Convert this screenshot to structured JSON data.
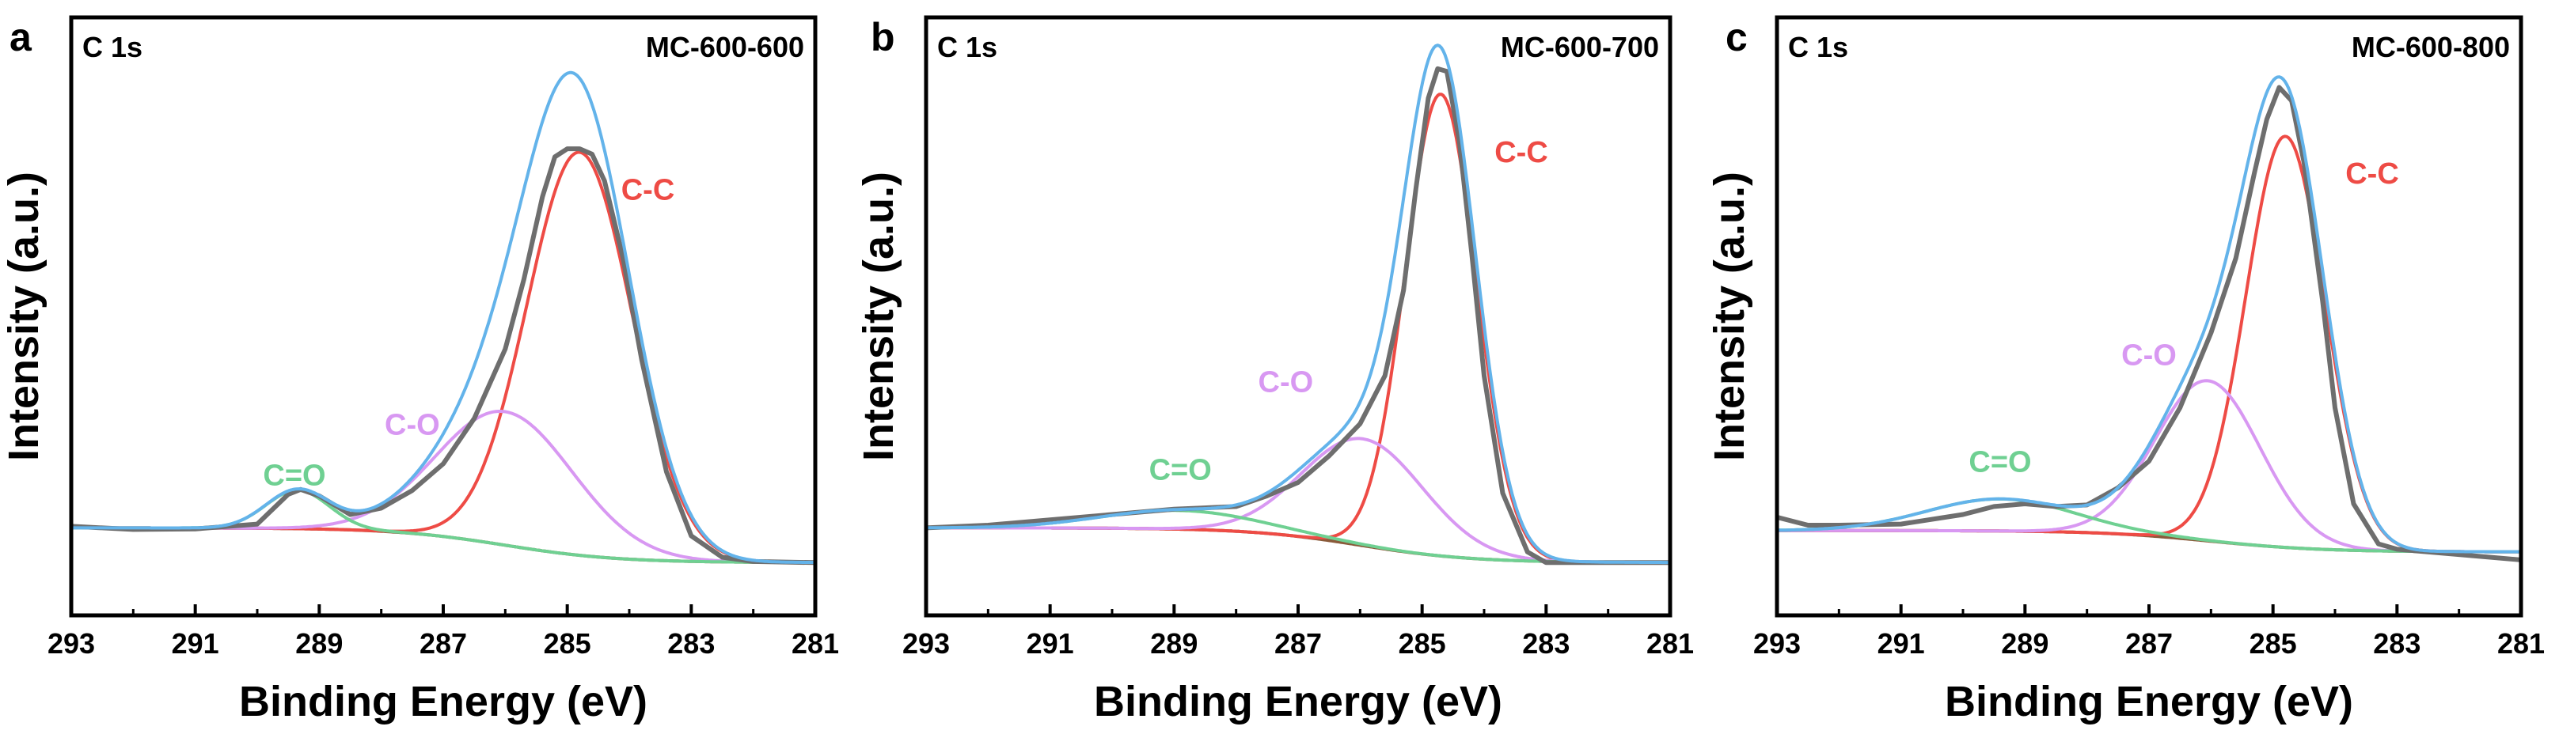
{
  "figure": {
    "colors": {
      "raw": "#6e6e6e",
      "envelope": "#63b3ea",
      "cc": "#ee4b45",
      "co": "#d898f2",
      "c_o_double": "#6fd092",
      "background": "#8a5a3a",
      "frame": "#000000"
    }
  },
  "chart_data": [
    {
      "type": "line",
      "panel_letter": "a",
      "core_level": "C 1s",
      "sample": "MC-600-600",
      "xlabel": "Binding Energy (eV)",
      "ylabel": "Intensity (a.u.)",
      "xlim": [
        293,
        281
      ],
      "x_reversed": true,
      "ylim": [
        0,
        1
      ],
      "x_ticks": [
        "293",
        "291",
        "289",
        "287",
        "285",
        "283",
        "281"
      ],
      "y_ticks_shown": false,
      "background": {
        "high_be": 0.115,
        "low_be": 0.05
      },
      "components": [
        {
          "name": "C-C",
          "center": 284.8,
          "height": 0.755,
          "fwhm": 2.0,
          "label_at": [
            283.7,
            0.73
          ]
        },
        {
          "name": "C-O",
          "center": 286.0,
          "height": 0.25,
          "fwhm": 2.6,
          "label_at": [
            287.5,
            0.29
          ]
        },
        {
          "name": "C=O",
          "center": 289.35,
          "height": 0.072,
          "fwhm": 1.2,
          "label_at": [
            289.4,
            0.195
          ]
        }
      ],
      "raw_spectrum": [
        [
          293.0,
          0.118
        ],
        [
          292.0,
          0.112
        ],
        [
          291.0,
          0.113
        ],
        [
          290.0,
          0.122
        ],
        [
          289.5,
          0.178
        ],
        [
          289.3,
          0.187
        ],
        [
          289.0,
          0.175
        ],
        [
          288.5,
          0.14
        ],
        [
          288.0,
          0.152
        ],
        [
          287.5,
          0.185
        ],
        [
          287.0,
          0.235
        ],
        [
          286.5,
          0.32
        ],
        [
          286.0,
          0.45
        ],
        [
          285.7,
          0.58
        ],
        [
          285.4,
          0.735
        ],
        [
          285.2,
          0.81
        ],
        [
          285.0,
          0.825
        ],
        [
          284.8,
          0.825
        ],
        [
          284.6,
          0.815
        ],
        [
          284.4,
          0.765
        ],
        [
          284.1,
          0.62
        ],
        [
          283.8,
          0.43
        ],
        [
          283.4,
          0.22
        ],
        [
          283.0,
          0.1
        ],
        [
          282.5,
          0.06
        ],
        [
          282.0,
          0.052
        ],
        [
          281.0,
          0.05
        ]
      ]
    },
    {
      "type": "line",
      "panel_letter": "b",
      "core_level": "C 1s",
      "sample": "MC-600-700",
      "xlabel": "Binding Energy (eV)",
      "ylabel": "Intensity (a.u.)",
      "xlim": [
        293,
        281
      ],
      "x_reversed": true,
      "ylim": [
        0,
        1
      ],
      "x_ticks": [
        "293",
        "291",
        "289",
        "287",
        "285",
        "283",
        "281"
      ],
      "y_ticks_shown": false,
      "background": {
        "high_be": 0.115,
        "low_be": 0.05
      },
      "components": [
        {
          "name": "C-C",
          "center": 284.7,
          "height": 0.865,
          "fwhm": 1.35,
          "label_at": [
            283.4,
            0.8
          ]
        },
        {
          "name": "C-O",
          "center": 285.95,
          "height": 0.2,
          "fwhm": 2.3,
          "label_at": [
            287.2,
            0.37
          ]
        },
        {
          "name": "C=O",
          "center": 288.9,
          "height": 0.035,
          "fwhm": 3.0,
          "label_at": [
            288.9,
            0.205
          ]
        }
      ],
      "raw_spectrum": [
        [
          293.0,
          0.115
        ],
        [
          292.0,
          0.12
        ],
        [
          291.0,
          0.13
        ],
        [
          290.0,
          0.14
        ],
        [
          289.0,
          0.15
        ],
        [
          288.0,
          0.155
        ],
        [
          287.5,
          0.175
        ],
        [
          287.0,
          0.2
        ],
        [
          286.5,
          0.25
        ],
        [
          286.0,
          0.31
        ],
        [
          285.6,
          0.4
        ],
        [
          285.3,
          0.56
        ],
        [
          285.1,
          0.75
        ],
        [
          284.9,
          0.92
        ],
        [
          284.75,
          0.975
        ],
        [
          284.6,
          0.97
        ],
        [
          284.4,
          0.84
        ],
        [
          284.2,
          0.63
        ],
        [
          284.0,
          0.4
        ],
        [
          283.7,
          0.18
        ],
        [
          283.3,
          0.07
        ],
        [
          283.0,
          0.05
        ],
        [
          282.0,
          0.05
        ],
        [
          281.0,
          0.05
        ]
      ]
    },
    {
      "type": "line",
      "panel_letter": "c",
      "core_level": "C 1s",
      "sample": "MC-600-800",
      "xlabel": "Binding Energy (eV)",
      "ylabel": "Intensity (a.u.)",
      "xlim": [
        293,
        281
      ],
      "x_reversed": true,
      "ylim": [
        0,
        1
      ],
      "x_ticks": [
        "293",
        "291",
        "289",
        "287",
        "285",
        "283",
        "281"
      ],
      "y_ticks_shown": false,
      "background": {
        "high_be": 0.11,
        "low_be": 0.07
      },
      "components": [
        {
          "name": "C-C",
          "center": 284.8,
          "height": 0.77,
          "fwhm": 1.5,
          "label_at": [
            283.4,
            0.76
          ]
        },
        {
          "name": "C-O",
          "center": 286.05,
          "height": 0.3,
          "fwhm": 2.0,
          "label_at": [
            287.0,
            0.42
          ]
        },
        {
          "name": "C=O",
          "center": 289.4,
          "height": 0.06,
          "fwhm": 2.8,
          "label_at": [
            289.4,
            0.22
          ]
        }
      ],
      "raw_spectrum": [
        [
          293.0,
          0.135
        ],
        [
          292.5,
          0.12
        ],
        [
          292.0,
          0.12
        ],
        [
          291.0,
          0.122
        ],
        [
          290.0,
          0.14
        ],
        [
          289.5,
          0.155
        ],
        [
          289.0,
          0.16
        ],
        [
          288.5,
          0.155
        ],
        [
          288.0,
          0.158
        ],
        [
          287.5,
          0.19
        ],
        [
          287.0,
          0.24
        ],
        [
          286.5,
          0.34
        ],
        [
          286.0,
          0.48
        ],
        [
          285.6,
          0.62
        ],
        [
          285.3,
          0.78
        ],
        [
          285.1,
          0.88
        ],
        [
          284.9,
          0.94
        ],
        [
          284.7,
          0.915
        ],
        [
          284.5,
          0.8
        ],
        [
          284.2,
          0.54
        ],
        [
          284.0,
          0.34
        ],
        [
          283.7,
          0.16
        ],
        [
          283.3,
          0.085
        ],
        [
          283.0,
          0.075
        ],
        [
          282.0,
          0.065
        ],
        [
          281.0,
          0.055
        ]
      ]
    }
  ]
}
